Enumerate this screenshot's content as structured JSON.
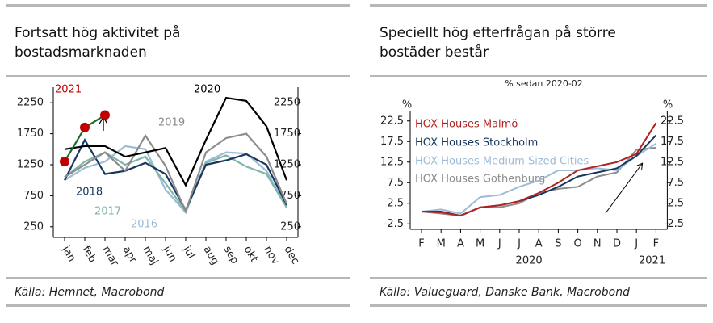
{
  "chart_data": [
    {
      "type": "line",
      "title": [
        "Fortsatt hög aktivitet på",
        "bostadsmarknaden"
      ],
      "source": "Källa: Hemnet, Macrobond",
      "categories": [
        "jan",
        "feb",
        "mar",
        "apr",
        "maj",
        "jun",
        "jul",
        "aug",
        "sep",
        "okt",
        "nov",
        "dec"
      ],
      "ylim": [
        0,
        2500
      ],
      "yticks": [
        250,
        750,
        1250,
        1750,
        2250
      ],
      "series": [
        {
          "name": "2016",
          "color": "#9dbbd8",
          "values": [
            1000,
            1200,
            1300,
            1550,
            1500,
            850,
            480,
            1300,
            1450,
            1430,
            1150,
            560
          ]
        },
        {
          "name": "2017",
          "color": "#7fb5a8",
          "values": [
            1050,
            1300,
            1450,
            1250,
            1380,
            950,
            500,
            1280,
            1400,
            1220,
            1100,
            560
          ]
        },
        {
          "name": "2018",
          "color": "#17375e",
          "values": [
            1000,
            1650,
            1100,
            1150,
            1280,
            1100,
            520,
            1250,
            1320,
            1420,
            1250,
            600
          ]
        },
        {
          "name": "2019",
          "color": "#8c8c8c",
          "values": [
            1050,
            1250,
            1450,
            1150,
            1720,
            1230,
            500,
            1450,
            1680,
            1750,
            1380,
            620
          ]
        },
        {
          "name": "2020",
          "color": "#000000",
          "values": [
            1500,
            1550,
            1550,
            1380,
            1450,
            1520,
            920,
            1650,
            2330,
            2280,
            1870,
            1000
          ]
        },
        {
          "name": "2021",
          "color": "#c00000",
          "line_color": "#1e6b2e",
          "markers": true,
          "values": [
            1300,
            1850,
            2050,
            null,
            null,
            null,
            null,
            null,
            null,
            null,
            null,
            null
          ]
        }
      ]
    },
    {
      "type": "line",
      "title": [
        "Speciellt hög efterfrågan på större",
        "bostäder består"
      ],
      "subtitle": "% sedan 2020-02",
      "source": "Källa: Valueguard, Danske Bank, Macrobond",
      "unit": "%",
      "categories": [
        "F",
        "M",
        "A",
        "M",
        "J",
        "J",
        "A",
        "S",
        "O",
        "N",
        "D",
        "J",
        "F"
      ],
      "years": [
        "2020",
        "2021"
      ],
      "ylim": [
        -5,
        25
      ],
      "yticks": [
        -2.5,
        2.5,
        7.5,
        12.5,
        17.5,
        22.5
      ],
      "series": [
        {
          "name": "HOX Houses Gothenburg",
          "color": "#8c8c8c",
          "values": [
            0.5,
            0,
            -0.5,
            1.5,
            1.5,
            2.5,
            5,
            6,
            6.5,
            9,
            10,
            15.5,
            16
          ]
        },
        {
          "name": "HOX Houses Medium Sized Cities",
          "color": "#9dbbd8",
          "values": [
            0.5,
            1,
            0,
            4,
            4.5,
            6.5,
            8,
            10.5,
            10.5,
            11,
            10.5,
            14,
            17
          ]
        },
        {
          "name": "HOX Houses Stockholm",
          "color": "#17375e",
          "values": [
            0.5,
            0.5,
            -0.5,
            1.5,
            2,
            3,
            4.5,
            6.5,
            9,
            10,
            11,
            14,
            19
          ]
        },
        {
          "name": "HOX Houses Malmö",
          "color": "#b22222",
          "values": [
            0.5,
            0.3,
            -0.5,
            1.5,
            2,
            3,
            5,
            7.5,
            10.5,
            11.5,
            12.5,
            14.5,
            22
          ]
        }
      ]
    }
  ]
}
